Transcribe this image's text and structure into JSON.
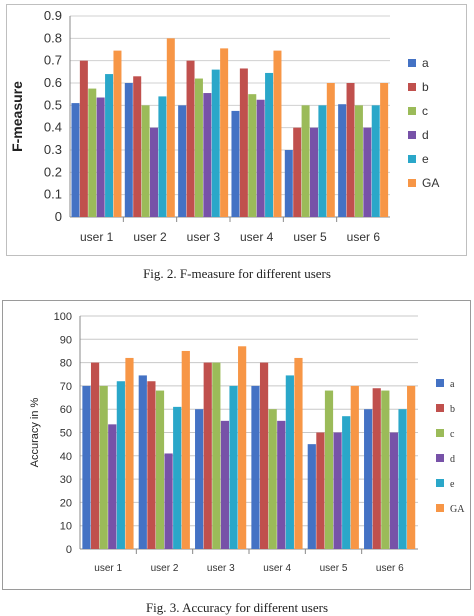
{
  "colors": {
    "a": "#4472c4",
    "b": "#c0504d",
    "c": "#9bbb59",
    "d": "#7752a8",
    "e": "#2aa7c9",
    "GA": "#f79646"
  },
  "captions": {
    "fig2": "Fig. 2.   F-measure for different users",
    "fig3": "Fig. 3.   Accuracy for different users"
  },
  "chart_data": [
    {
      "type": "bar",
      "title": "",
      "xlabel": "",
      "ylabel": "F-measure",
      "ylim": [
        0,
        0.9
      ],
      "yticks": [
        "0",
        "0.1",
        "0.2",
        "0.3",
        "0.4",
        "0.5",
        "0.6",
        "0.7",
        "0.8",
        "0.9"
      ],
      "grid": true,
      "legend": "right",
      "categories": [
        "user 1",
        "user 2",
        "user 3",
        "user 4",
        "user 5",
        "user 6"
      ],
      "series": [
        {
          "name": "a",
          "values": [
            0.51,
            0.6,
            0.5,
            0.475,
            0.3,
            0.505
          ]
        },
        {
          "name": "b",
          "values": [
            0.7,
            0.63,
            0.7,
            0.665,
            0.4,
            0.6
          ]
        },
        {
          "name": "c",
          "values": [
            0.575,
            0.5,
            0.62,
            0.55,
            0.5,
            0.5
          ]
        },
        {
          "name": "d",
          "values": [
            0.535,
            0.4,
            0.555,
            0.525,
            0.4,
            0.4
          ]
        },
        {
          "name": "e",
          "values": [
            0.64,
            0.54,
            0.66,
            0.645,
            0.5,
            0.5
          ]
        },
        {
          "name": "GA",
          "values": [
            0.745,
            0.8,
            0.755,
            0.745,
            0.6,
            0.6
          ]
        }
      ]
    },
    {
      "type": "bar",
      "title": "",
      "xlabel": "",
      "ylabel": "Accuracy in %",
      "ylim": [
        0,
        100
      ],
      "yticks": [
        "0",
        "10",
        "20",
        "30",
        "40",
        "50",
        "60",
        "70",
        "80",
        "90",
        "100"
      ],
      "grid": true,
      "legend": "right",
      "categories": [
        "user 1",
        "user 2",
        "user 3",
        "user 4",
        "user 5",
        "user 6"
      ],
      "series": [
        {
          "name": "a",
          "values": [
            70,
            74.5,
            60,
            70,
            45,
            60
          ]
        },
        {
          "name": "b",
          "values": [
            80,
            72,
            80,
            80,
            50,
            69
          ]
        },
        {
          "name": "c",
          "values": [
            70,
            68,
            80,
            60,
            68,
            68
          ]
        },
        {
          "name": "d",
          "values": [
            53.5,
            41,
            55,
            55,
            50,
            50
          ]
        },
        {
          "name": "e",
          "values": [
            72,
            61,
            70,
            74.5,
            57,
            60
          ]
        },
        {
          "name": "GA",
          "values": [
            82,
            85,
            87,
            82,
            70,
            70
          ]
        }
      ]
    }
  ]
}
